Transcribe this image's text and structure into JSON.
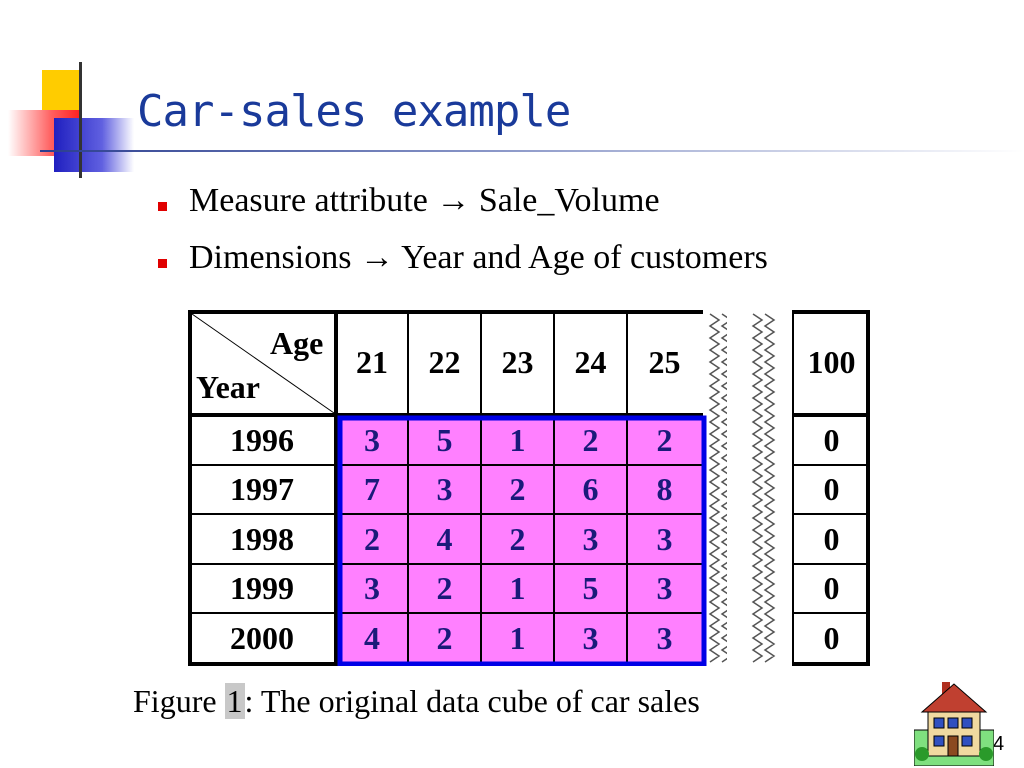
{
  "slide": {
    "title": "Car-sales example",
    "bullets": [
      "Measure attribute → Sale_Volume",
      "Dimensions → Year and Age of customers"
    ],
    "caption_prefix": "Figure ",
    "caption_number": "1",
    "caption_suffix": ": The original data cube of car sales",
    "page_number": "4"
  },
  "table": {
    "corner_top": "Age",
    "corner_bottom": "Year",
    "ages": [
      "21",
      "22",
      "23",
      "24",
      "25"
    ],
    "last_age": "100",
    "rows": [
      {
        "year": "1996",
        "values": [
          "3",
          "5",
          "1",
          "2",
          "2"
        ],
        "last": "0"
      },
      {
        "year": "1997",
        "values": [
          "7",
          "3",
          "2",
          "6",
          "8"
        ],
        "last": "0"
      },
      {
        "year": "1998",
        "values": [
          "2",
          "4",
          "2",
          "3",
          "3"
        ],
        "last": "0"
      },
      {
        "year": "1999",
        "values": [
          "3",
          "2",
          "1",
          "5",
          "3"
        ],
        "last": "0"
      },
      {
        "year": "2000",
        "values": [
          "4",
          "2",
          "1",
          "3",
          "3"
        ],
        "last": "0"
      }
    ],
    "colors": {
      "highlight_fill": "#ff80ff",
      "highlight_border": "#0000e6"
    }
  },
  "icons": [
    "bullet-square-icon",
    "house-icon",
    "title-decoration"
  ]
}
